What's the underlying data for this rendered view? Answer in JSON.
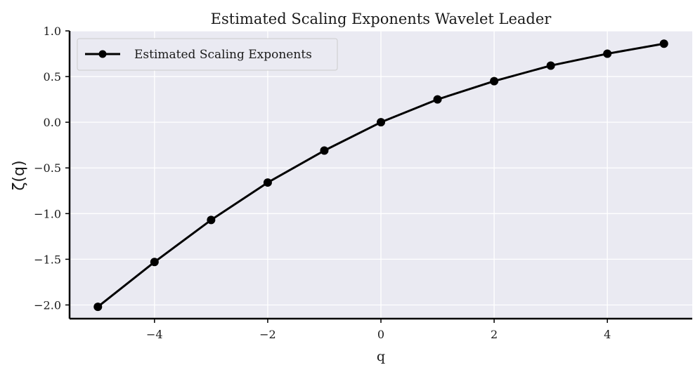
{
  "chart_data": {
    "type": "line",
    "title": "Estimated Scaling Exponents Wavelet Leader",
    "xlabel": "q",
    "ylabel": "ζ(q)",
    "xlim": [
      -5.5,
      5.5
    ],
    "ylim": [
      -2.15,
      1.0
    ],
    "xticks": [
      -4,
      -2,
      0,
      2,
      4
    ],
    "xtick_labels": [
      "−4",
      "−2",
      "0",
      "2",
      "4"
    ],
    "yticks": [
      1.0,
      0.5,
      0.0,
      -0.5,
      -1.0,
      -1.5,
      -2.0
    ],
    "ytick_labels": [
      "1.0",
      "0.5",
      "0.0",
      "−0.5",
      "−1.0",
      "−1.5",
      "−2.0"
    ],
    "grid": true,
    "legend_position": "top-left",
    "series": [
      {
        "name": "Estimated Scaling Exponents",
        "color": "#000000",
        "marker": "circle",
        "x": [
          -5,
          -4,
          -3,
          -2,
          -1,
          0,
          1,
          2,
          3,
          4,
          5
        ],
        "y": [
          -2.02,
          -1.53,
          -1.07,
          -0.66,
          -0.31,
          0.0,
          0.25,
          0.45,
          0.62,
          0.75,
          0.86
        ]
      }
    ]
  },
  "colors": {
    "plot_background": "#eaeaf2",
    "grid": "#ffffff",
    "line": "#000000",
    "axis": "#000000"
  }
}
